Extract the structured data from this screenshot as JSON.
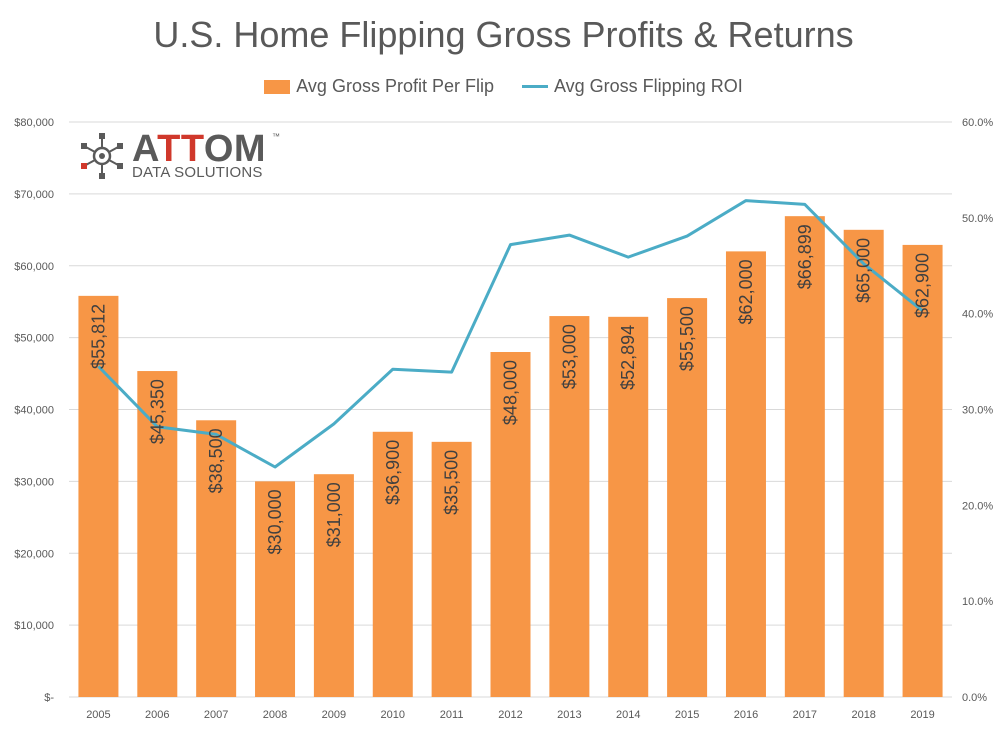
{
  "chart_data": {
    "type": "bar",
    "title": "U.S. Home Flipping Gross Profits & Returns",
    "categories": [
      "2005",
      "2006",
      "2007",
      "2008",
      "2009",
      "2010",
      "2011",
      "2012",
      "2013",
      "2014",
      "2015",
      "2016",
      "2017",
      "2018",
      "2019"
    ],
    "series": [
      {
        "name": "Avg Gross Profit Per Flip",
        "type": "bar",
        "axis": "left",
        "color": "#f79646",
        "values": [
          55812,
          45350,
          38500,
          30000,
          31000,
          36900,
          35500,
          48000,
          53000,
          52894,
          55500,
          62000,
          66899,
          65000,
          62900
        ],
        "labels": [
          "$55,812",
          "$45,350",
          "$38,500",
          "$30,000",
          "$31,000",
          "$36,900",
          "$35,500",
          "$48,000",
          "$53,000",
          "$52,894",
          "$55,500",
          "$62,000",
          "$66,899",
          "$65,000",
          "$62,900"
        ]
      },
      {
        "name": "Avg Gross Flipping ROI",
        "type": "line",
        "axis": "right",
        "color": "#4bacc6",
        "values": [
          34.5,
          28.2,
          27.4,
          24.0,
          28.5,
          34.2,
          33.9,
          47.2,
          48.2,
          45.9,
          48.1,
          51.8,
          51.4,
          45.2,
          40.3
        ]
      }
    ],
    "y_left": {
      "ylim": [
        0,
        80000
      ],
      "ticks": [
        0,
        10000,
        20000,
        30000,
        40000,
        50000,
        60000,
        70000,
        80000
      ],
      "tick_labels": [
        "$-",
        "$10,000",
        "$20,000",
        "$30,000",
        "$40,000",
        "$50,000",
        "$60,000",
        "$70,000",
        "$80,000"
      ]
    },
    "y_right": {
      "ylim": [
        0,
        60
      ],
      "ticks": [
        0,
        10,
        20,
        30,
        40,
        50,
        60
      ],
      "tick_labels": [
        "0.0%",
        "10.0%",
        "20.0%",
        "30.0%",
        "40.0%",
        "50.0%",
        "60.0%"
      ]
    },
    "grid": true,
    "legend_position": "top-center"
  },
  "logo": {
    "name_prefix": "A",
    "name_highlight": "TT",
    "name_suffix": "OM",
    "trademark": "™",
    "subtitle": "DATA SOLUTIONS"
  },
  "colors": {
    "bar": "#f79646",
    "line": "#4bacc6",
    "grid": "#d9d9d9",
    "text": "#595959"
  }
}
